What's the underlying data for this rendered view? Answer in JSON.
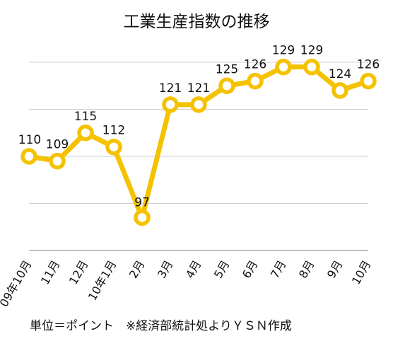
{
  "chart_data": {
    "type": "line",
    "title": "工業生産指数の推移",
    "categories": [
      "09年10月",
      "11月",
      "12月",
      "10年1月",
      "2月",
      "3月",
      "4月",
      "5月",
      "6月",
      "7月",
      "8月",
      "9月",
      "10月"
    ],
    "series": [
      {
        "values": [
          110,
          109,
          115,
          112,
          97,
          121,
          121,
          125,
          126,
          129,
          129,
          124,
          126
        ]
      }
    ],
    "data_labels": [
      "110",
      "109",
      "115",
      "112",
      "97",
      "121",
      "121",
      "125",
      "126",
      "129",
      "129",
      "124",
      "126"
    ],
    "ylim": [
      90,
      130
    ],
    "yaxis_visible": false,
    "grid": true,
    "legend": "none",
    "line_color": "#f5c200",
    "marker_fill": "#ffffff",
    "grid_color": "#cfcfcf"
  },
  "footnote": "単位＝ポイント　※経済部統計処よりＹＳＮ作成"
}
